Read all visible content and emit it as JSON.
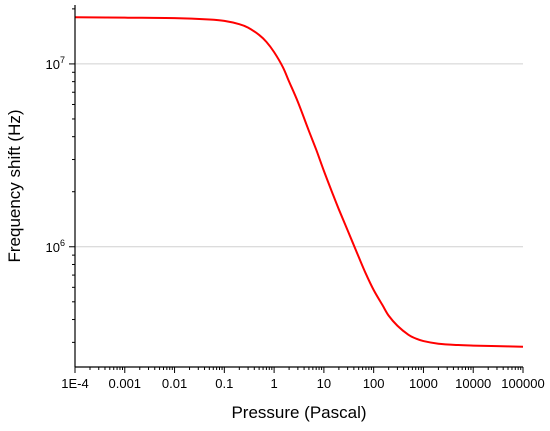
{
  "chart_data": {
    "type": "line",
    "title": "",
    "xlabel": "Pressure (Pascal)",
    "ylabel": "Frequency shift (Hz)",
    "x_scale": "log",
    "y_scale": "log",
    "xlim": [
      0.0001,
      100000
    ],
    "ylim": [
      220000,
      21000000
    ],
    "grid": "horizontal major",
    "legend": "none",
    "line_color": "#ff0000",
    "x_ticks": [
      {
        "value": 0.0001,
        "label": "1E-4"
      },
      {
        "value": 0.001,
        "label": "0.001"
      },
      {
        "value": 0.01,
        "label": "0.01"
      },
      {
        "value": 0.1,
        "label": "0.1"
      },
      {
        "value": 1,
        "label": "1"
      },
      {
        "value": 10,
        "label": "10"
      },
      {
        "value": 100,
        "label": "100"
      },
      {
        "value": 1000,
        "label": "1000"
      },
      {
        "value": 10000,
        "label": "10000"
      },
      {
        "value": 100000,
        "label": "100000"
      }
    ],
    "y_ticks": [
      {
        "value": 1000000,
        "base": "10",
        "exp": "6"
      },
      {
        "value": 10000000,
        "base": "10",
        "exp": "7"
      }
    ],
    "series": [
      {
        "x": [
          0.0001,
          0.001,
          0.01,
          0.05,
          0.1,
          0.2,
          0.3,
          0.5,
          0.7,
          1,
          1.5,
          2,
          3,
          5,
          7,
          10,
          15,
          20,
          30,
          50,
          70,
          100,
          150,
          200,
          300,
          500,
          700,
          1000,
          2000,
          5000,
          10000,
          30000,
          100000
        ],
        "values": [
          18000000,
          17900000,
          17800000,
          17500000,
          17200000,
          16500000,
          15800000,
          14400000,
          13200000,
          11600000,
          9600000,
          8000000,
          6200000,
          4300000,
          3400000,
          2600000,
          1950000,
          1600000,
          1230000,
          880000,
          710000,
          580000,
          480000,
          420000,
          370000,
          330000,
          315000,
          305000,
          295000,
          290000,
          288000,
          286000,
          284000
        ]
      }
    ]
  }
}
